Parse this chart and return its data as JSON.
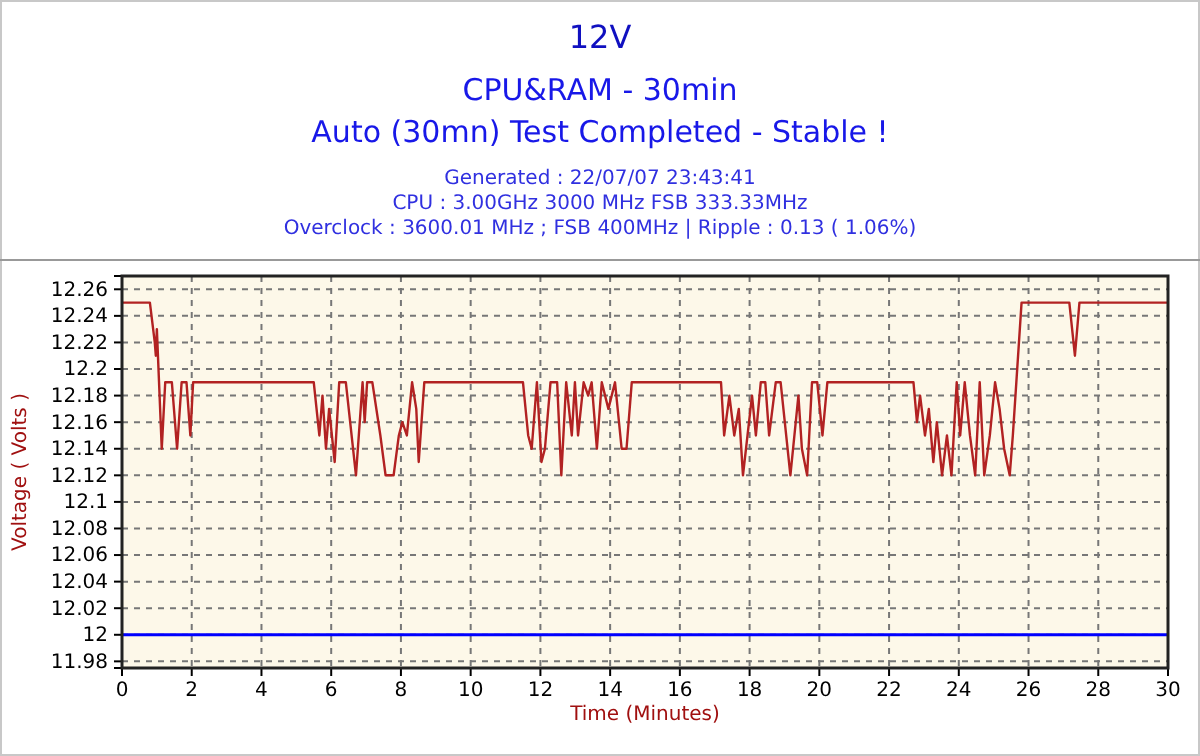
{
  "chart_data": {
    "type": "line",
    "title": "12V",
    "subtitle": "CPU&RAM - 30min\nAuto (30mn) Test Completed - Stable !",
    "annotations": [
      "Generated : 22/07/07 23:43:41",
      "CPU : 3.00GHz 3000 MHz FSB 333.33MHz",
      "Overclock : 3600.01 MHz ; FSB 400MHz | Ripple : 0.13 ( 1.06%)"
    ],
    "xlabel": "Time (Minutes)",
    "ylabel": "Voltage ( Volts )",
    "xlim": [
      0,
      30
    ],
    "xticks": [
      0,
      2,
      4,
      6,
      8,
      10,
      12,
      14,
      16,
      18,
      20,
      22,
      24,
      26,
      28,
      30
    ],
    "ylim": [
      11.975,
      12.27
    ],
    "yticks": [
      11.98,
      12,
      12.02,
      12.04,
      12.06,
      12.08,
      12.1,
      12.12,
      12.14,
      12.16,
      12.18,
      12.2,
      12.22,
      12.24,
      12.26
    ],
    "grid": true,
    "line_style": "solid",
    "ref_lines": [
      {
        "axis": "y",
        "value": 12,
        "color": "#0000ff"
      }
    ],
    "series": [
      {
        "color": "#b22222",
        "x": [
          0,
          0.8,
          0.94,
          0.97,
          1.0,
          1.14,
          1.24,
          1.43,
          1.58,
          1.71,
          1.85,
          1.96,
          2.04,
          5.5,
          5.66,
          5.75,
          5.85,
          5.94,
          6.1,
          6.23,
          6.42,
          6.71,
          6.9,
          6.96,
          7.03,
          7.18,
          7.41,
          7.56,
          7.79,
          7.94,
          8.04,
          8.17,
          8.32,
          8.44,
          8.51,
          8.67,
          11.5,
          11.65,
          11.75,
          11.9,
          12.03,
          12.13,
          12.29,
          12.48,
          12.6,
          12.74,
          12.9,
          12.99,
          13.08,
          13.24,
          13.37,
          13.47,
          13.62,
          13.76,
          13.95,
          14.14,
          14.33,
          14.47,
          14.62,
          17.18,
          17.27,
          17.42,
          17.56,
          17.69,
          17.81,
          17.94,
          18.07,
          18.18,
          18.32,
          18.45,
          18.56,
          18.75,
          18.89,
          19.17,
          19.4,
          19.5,
          19.65,
          19.79,
          19.94,
          20.09,
          20.23,
          22.7,
          22.8,
          22.89,
          23.03,
          23.14,
          23.27,
          23.37,
          23.52,
          23.66,
          23.79,
          23.94,
          24.04,
          24.17,
          24.32,
          24.47,
          24.6,
          24.73,
          24.89,
          25.04,
          25.17,
          25.3,
          25.46,
          25.55,
          25.65,
          25.8,
          27.17,
          27.33,
          27.46,
          30
        ],
        "values": [
          12.25,
          12.25,
          12.22,
          12.21,
          12.23,
          12.14,
          12.19,
          12.19,
          12.14,
          12.19,
          12.19,
          12.15,
          12.19,
          12.19,
          12.15,
          12.18,
          12.14,
          12.17,
          12.13,
          12.19,
          12.19,
          12.12,
          12.19,
          12.16,
          12.19,
          12.19,
          12.15,
          12.12,
          12.12,
          12.15,
          12.16,
          12.15,
          12.19,
          12.17,
          12.13,
          12.19,
          12.19,
          12.15,
          12.14,
          12.19,
          12.13,
          12.14,
          12.19,
          12.19,
          12.12,
          12.19,
          12.15,
          12.19,
          12.15,
          12.19,
          12.18,
          12.19,
          12.14,
          12.19,
          12.17,
          12.19,
          12.14,
          12.14,
          12.19,
          12.19,
          12.15,
          12.18,
          12.15,
          12.17,
          12.12,
          12.15,
          12.18,
          12.15,
          12.19,
          12.19,
          12.15,
          12.19,
          12.19,
          12.12,
          12.18,
          12.14,
          12.12,
          12.19,
          12.19,
          12.15,
          12.19,
          12.19,
          12.16,
          12.18,
          12.15,
          12.17,
          12.13,
          12.16,
          12.12,
          12.15,
          12.12,
          12.19,
          12.15,
          12.19,
          12.15,
          12.12,
          12.19,
          12.12,
          12.15,
          12.19,
          12.17,
          12.14,
          12.12,
          12.15,
          12.19,
          12.25,
          12.25,
          12.21,
          12.25,
          12.25
        ]
      }
    ]
  }
}
